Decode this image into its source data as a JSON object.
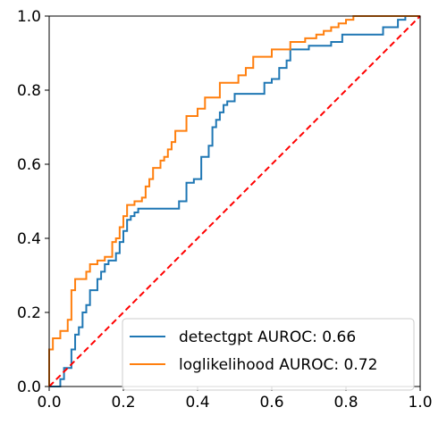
{
  "chart_data": {
    "type": "line",
    "xlim": [
      0,
      1
    ],
    "ylim": [
      0,
      1
    ],
    "grid": false,
    "legend_position": "lower-right",
    "x_ticks": [
      "0.0",
      "0.2",
      "0.4",
      "0.6",
      "0.8",
      "1.0"
    ],
    "y_ticks": [
      "0.0",
      "0.2",
      "0.4",
      "0.6",
      "0.8",
      "1.0"
    ],
    "series": [
      {
        "name": "detectgpt AUROC: 0.66",
        "color": "#1f77b4",
        "style": "step",
        "points": [
          [
            0.0,
            0.0
          ],
          [
            0.03,
            0.0
          ],
          [
            0.03,
            0.02
          ],
          [
            0.04,
            0.02
          ],
          [
            0.04,
            0.05
          ],
          [
            0.06,
            0.05
          ],
          [
            0.06,
            0.1
          ],
          [
            0.07,
            0.1
          ],
          [
            0.07,
            0.14
          ],
          [
            0.08,
            0.14
          ],
          [
            0.08,
            0.16
          ],
          [
            0.09,
            0.16
          ],
          [
            0.09,
            0.2
          ],
          [
            0.1,
            0.2
          ],
          [
            0.1,
            0.22
          ],
          [
            0.11,
            0.22
          ],
          [
            0.11,
            0.26
          ],
          [
            0.13,
            0.26
          ],
          [
            0.13,
            0.29
          ],
          [
            0.14,
            0.29
          ],
          [
            0.14,
            0.31
          ],
          [
            0.15,
            0.31
          ],
          [
            0.15,
            0.33
          ],
          [
            0.16,
            0.33
          ],
          [
            0.16,
            0.34
          ],
          [
            0.18,
            0.34
          ],
          [
            0.18,
            0.36
          ],
          [
            0.19,
            0.36
          ],
          [
            0.19,
            0.39
          ],
          [
            0.2,
            0.39
          ],
          [
            0.2,
            0.42
          ],
          [
            0.21,
            0.42
          ],
          [
            0.21,
            0.45
          ],
          [
            0.22,
            0.45
          ],
          [
            0.22,
            0.46
          ],
          [
            0.23,
            0.46
          ],
          [
            0.23,
            0.47
          ],
          [
            0.24,
            0.47
          ],
          [
            0.24,
            0.48
          ],
          [
            0.35,
            0.48
          ],
          [
            0.35,
            0.5
          ],
          [
            0.37,
            0.5
          ],
          [
            0.37,
            0.55
          ],
          [
            0.39,
            0.55
          ],
          [
            0.39,
            0.56
          ],
          [
            0.41,
            0.56
          ],
          [
            0.41,
            0.62
          ],
          [
            0.43,
            0.62
          ],
          [
            0.43,
            0.65
          ],
          [
            0.44,
            0.65
          ],
          [
            0.44,
            0.7
          ],
          [
            0.45,
            0.7
          ],
          [
            0.45,
            0.72
          ],
          [
            0.46,
            0.72
          ],
          [
            0.46,
            0.74
          ],
          [
            0.47,
            0.74
          ],
          [
            0.47,
            0.76
          ],
          [
            0.48,
            0.76
          ],
          [
            0.48,
            0.77
          ],
          [
            0.5,
            0.77
          ],
          [
            0.5,
            0.79
          ],
          [
            0.58,
            0.79
          ],
          [
            0.58,
            0.82
          ],
          [
            0.6,
            0.82
          ],
          [
            0.6,
            0.83
          ],
          [
            0.62,
            0.83
          ],
          [
            0.62,
            0.86
          ],
          [
            0.64,
            0.86
          ],
          [
            0.64,
            0.88
          ],
          [
            0.65,
            0.88
          ],
          [
            0.65,
            0.91
          ],
          [
            0.7,
            0.91
          ],
          [
            0.7,
            0.92
          ],
          [
            0.76,
            0.92
          ],
          [
            0.76,
            0.93
          ],
          [
            0.79,
            0.93
          ],
          [
            0.79,
            0.95
          ],
          [
            0.9,
            0.95
          ],
          [
            0.9,
            0.97
          ],
          [
            0.94,
            0.97
          ],
          [
            0.94,
            0.99
          ],
          [
            0.96,
            0.99
          ],
          [
            0.96,
            1.0
          ],
          [
            1.0,
            1.0
          ]
        ]
      },
      {
        "name": "loglikelihood AUROC: 0.72",
        "color": "#ff7f0e",
        "style": "step",
        "points": [
          [
            0.0,
            0.0
          ],
          [
            0.0,
            0.1
          ],
          [
            0.01,
            0.1
          ],
          [
            0.01,
            0.13
          ],
          [
            0.03,
            0.13
          ],
          [
            0.03,
            0.15
          ],
          [
            0.05,
            0.15
          ],
          [
            0.05,
            0.18
          ],
          [
            0.06,
            0.18
          ],
          [
            0.06,
            0.26
          ],
          [
            0.07,
            0.26
          ],
          [
            0.07,
            0.29
          ],
          [
            0.1,
            0.29
          ],
          [
            0.1,
            0.31
          ],
          [
            0.11,
            0.31
          ],
          [
            0.11,
            0.33
          ],
          [
            0.13,
            0.33
          ],
          [
            0.13,
            0.34
          ],
          [
            0.15,
            0.34
          ],
          [
            0.15,
            0.35
          ],
          [
            0.17,
            0.35
          ],
          [
            0.17,
            0.39
          ],
          [
            0.18,
            0.39
          ],
          [
            0.18,
            0.4
          ],
          [
            0.19,
            0.4
          ],
          [
            0.19,
            0.43
          ],
          [
            0.2,
            0.43
          ],
          [
            0.2,
            0.46
          ],
          [
            0.21,
            0.46
          ],
          [
            0.21,
            0.49
          ],
          [
            0.23,
            0.49
          ],
          [
            0.23,
            0.5
          ],
          [
            0.25,
            0.5
          ],
          [
            0.25,
            0.51
          ],
          [
            0.26,
            0.51
          ],
          [
            0.26,
            0.54
          ],
          [
            0.27,
            0.54
          ],
          [
            0.27,
            0.56
          ],
          [
            0.28,
            0.56
          ],
          [
            0.28,
            0.59
          ],
          [
            0.3,
            0.59
          ],
          [
            0.3,
            0.61
          ],
          [
            0.31,
            0.61
          ],
          [
            0.31,
            0.62
          ],
          [
            0.32,
            0.62
          ],
          [
            0.32,
            0.64
          ],
          [
            0.33,
            0.64
          ],
          [
            0.33,
            0.66
          ],
          [
            0.34,
            0.66
          ],
          [
            0.34,
            0.69
          ],
          [
            0.37,
            0.69
          ],
          [
            0.37,
            0.73
          ],
          [
            0.4,
            0.73
          ],
          [
            0.4,
            0.75
          ],
          [
            0.42,
            0.75
          ],
          [
            0.42,
            0.78
          ],
          [
            0.46,
            0.78
          ],
          [
            0.46,
            0.82
          ],
          [
            0.51,
            0.82
          ],
          [
            0.51,
            0.84
          ],
          [
            0.53,
            0.84
          ],
          [
            0.53,
            0.86
          ],
          [
            0.55,
            0.86
          ],
          [
            0.55,
            0.89
          ],
          [
            0.6,
            0.89
          ],
          [
            0.6,
            0.91
          ],
          [
            0.65,
            0.91
          ],
          [
            0.65,
            0.93
          ],
          [
            0.69,
            0.93
          ],
          [
            0.69,
            0.94
          ],
          [
            0.72,
            0.94
          ],
          [
            0.72,
            0.95
          ],
          [
            0.74,
            0.95
          ],
          [
            0.74,
            0.96
          ],
          [
            0.76,
            0.96
          ],
          [
            0.76,
            0.97
          ],
          [
            0.78,
            0.97
          ],
          [
            0.78,
            0.98
          ],
          [
            0.8,
            0.98
          ],
          [
            0.8,
            0.99
          ],
          [
            0.82,
            0.99
          ],
          [
            0.82,
            1.0
          ],
          [
            1.0,
            1.0
          ]
        ]
      },
      {
        "name": "",
        "color": "#ff0000",
        "style": "dashed",
        "points": [
          [
            0.0,
            0.0
          ],
          [
            1.0,
            1.0
          ]
        ]
      }
    ]
  }
}
